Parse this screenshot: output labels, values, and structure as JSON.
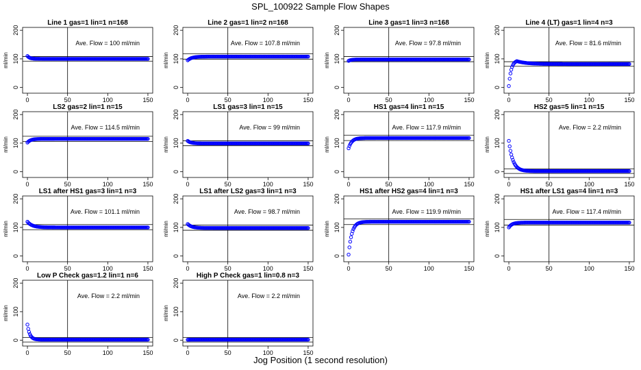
{
  "figure": {
    "title": "SPL_100922  Sample Flow Shapes",
    "xlabel": "Jog Position (1 second resolution)"
  },
  "colors": {
    "points": "#0000ff",
    "axes": "#000000",
    "background": "#ffffff"
  },
  "chart_data": [
    {
      "type": "scatter",
      "title": "Line 1 gas=1 lin=1 n=168",
      "ylabel": "ml/min",
      "ave_flow_label": "Ave. Flow =  100  ml/min",
      "ave_flow": 100,
      "xlim": [
        0,
        150
      ],
      "ylim": [
        -20,
        210
      ],
      "xticks": [
        0,
        50,
        100,
        150
      ],
      "yticks": [
        0,
        100,
        200
      ],
      "vline_x": 50,
      "hlines": [
        108,
        92
      ],
      "shape": {
        "start": 110,
        "steady": 100,
        "tau": 3
      }
    },
    {
      "type": "scatter",
      "title": "Line 2 gas=1 lin=2 n=168",
      "ylabel": "ml/min",
      "ave_flow_label": "Ave. Flow =  107.8  ml/min",
      "ave_flow": 107.8,
      "xlim": [
        0,
        150
      ],
      "ylim": [
        -20,
        210
      ],
      "xticks": [
        0,
        50,
        100,
        150
      ],
      "yticks": [
        0,
        100,
        200
      ],
      "vline_x": 50,
      "hlines": [
        118,
        99
      ],
      "shape": {
        "start": 95,
        "steady": 108,
        "tau": 5
      }
    },
    {
      "type": "scatter",
      "title": "Line 3 gas=1 lin=3 n=168",
      "ylabel": "ml/min",
      "ave_flow_label": "Ave. Flow =  97.8  ml/min",
      "ave_flow": 97.8,
      "xlim": [
        0,
        150
      ],
      "ylim": [
        -20,
        210
      ],
      "xticks": [
        0,
        50,
        100,
        150
      ],
      "yticks": [
        0,
        100,
        200
      ],
      "vline_x": 50,
      "hlines": [
        108,
        90
      ],
      "shape": {
        "start": 93,
        "steady": 98,
        "tau": 3
      }
    },
    {
      "type": "scatter",
      "title": "Line 4 (LT) gas=1 lin=4 n=3",
      "ylabel": "ml/min",
      "ave_flow_label": "Ave. Flow =  81.6  ml/min",
      "ave_flow": 81.6,
      "xlim": [
        0,
        150
      ],
      "ylim": [
        -20,
        210
      ],
      "xticks": [
        0,
        50,
        100,
        150
      ],
      "yticks": [
        0,
        100,
        200
      ],
      "vline_x": 50,
      "hlines": [
        90,
        74
      ],
      "shape": {
        "start": 5,
        "peak": 92,
        "peak_x": 10,
        "steady": 82
      }
    },
    {
      "type": "scatter",
      "title": "LS2 gas=2 lin=1 n=15",
      "ylabel": "ml/min",
      "ave_flow_label": "Ave. Flow =  114.5  ml/min",
      "ave_flow": 114.5,
      "xlim": [
        0,
        150
      ],
      "ylim": [
        -20,
        210
      ],
      "xticks": [
        0,
        50,
        100,
        150
      ],
      "yticks": [
        0,
        100,
        200
      ],
      "vline_x": 50,
      "hlines": [
        124,
        106
      ],
      "shape": {
        "start": 102,
        "steady": 115,
        "tau": 4
      }
    },
    {
      "type": "scatter",
      "title": "LS1 gas=3 lin=1 n=15",
      "ylabel": "ml/min",
      "ave_flow_label": "Ave. Flow =  99  ml/min",
      "ave_flow": 99,
      "xlim": [
        0,
        150
      ],
      "ylim": [
        -20,
        210
      ],
      "xticks": [
        0,
        50,
        100,
        150
      ],
      "yticks": [
        0,
        100,
        200
      ],
      "vline_x": 50,
      "hlines": [
        108,
        91
      ],
      "shape": {
        "start": 108,
        "steady": 99,
        "tau": 4
      }
    },
    {
      "type": "scatter",
      "title": "HS1 gas=4 lin=1 n=15",
      "ylabel": "ml/min",
      "ave_flow_label": "Ave. Flow =  117.9  ml/min",
      "ave_flow": 117.9,
      "xlim": [
        0,
        150
      ],
      "ylim": [
        -20,
        210
      ],
      "xticks": [
        0,
        50,
        100,
        150
      ],
      "yticks": [
        0,
        100,
        200
      ],
      "vline_x": 50,
      "hlines": [
        128,
        109
      ],
      "shape": {
        "start": 82,
        "steady": 118,
        "tau": 4
      }
    },
    {
      "type": "scatter",
      "title": "HS2 gas=5 lin=1 n=15",
      "ylabel": "ml/min",
      "ave_flow_label": "Ave. Flow =  2.2  ml/min",
      "ave_flow": 2.2,
      "xlim": [
        0,
        150
      ],
      "ylim": [
        -20,
        210
      ],
      "xticks": [
        0,
        50,
        100,
        150
      ],
      "yticks": [
        0,
        100,
        200
      ],
      "vline_x": 50,
      "hlines": [
        10,
        -6
      ],
      "shape": {
        "start": 108,
        "steady": 2.2,
        "tau": 5
      }
    },
    {
      "type": "scatter",
      "title": "LS1 after HS1 gas=3 lin=1 n=3",
      "ylabel": "ml/min",
      "ave_flow_label": "Ave. Flow =  101.1  ml/min",
      "ave_flow": 101.1,
      "xlim": [
        0,
        150
      ],
      "ylim": [
        -20,
        210
      ],
      "xticks": [
        0,
        50,
        100,
        150
      ],
      "yticks": [
        0,
        100,
        200
      ],
      "vline_x": 50,
      "hlines": [
        110,
        92
      ],
      "shape": {
        "start": 120,
        "steady": 100,
        "tau": 6
      }
    },
    {
      "type": "scatter",
      "title": "LS1 after LS2 gas=3 lin=1 n=3",
      "ylabel": "ml/min",
      "ave_flow_label": "Ave. Flow =  98.7  ml/min",
      "ave_flow": 98.7,
      "xlim": [
        0,
        150
      ],
      "ylim": [
        -20,
        210
      ],
      "xticks": [
        0,
        50,
        100,
        150
      ],
      "yticks": [
        0,
        100,
        200
      ],
      "vline_x": 50,
      "hlines": [
        108,
        90
      ],
      "shape": {
        "start": 112,
        "steady": 98,
        "tau": 5
      }
    },
    {
      "type": "scatter",
      "title": "HS1 after HS2 gas=4 lin=1 n=3",
      "ylabel": "ml/min",
      "ave_flow_label": "Ave. Flow =  119.9  ml/min",
      "ave_flow": 119.9,
      "xlim": [
        0,
        150
      ],
      "ylim": [
        -20,
        210
      ],
      "xticks": [
        0,
        50,
        100,
        150
      ],
      "yticks": [
        0,
        100,
        200
      ],
      "vline_x": 50,
      "hlines": [
        130,
        110
      ],
      "shape": {
        "start": 5,
        "steady": 120,
        "tau": 4
      }
    },
    {
      "type": "scatter",
      "title": "HS1 after LS1 gas=4 lin=1 n=3",
      "ylabel": "ml/min",
      "ave_flow_label": "Ave. Flow =  117.4  ml/min",
      "ave_flow": 117.4,
      "xlim": [
        0,
        150
      ],
      "ylim": [
        -20,
        210
      ],
      "xticks": [
        0,
        50,
        100,
        150
      ],
      "yticks": [
        0,
        100,
        200
      ],
      "vline_x": 50,
      "hlines": [
        128,
        108
      ],
      "shape": {
        "start": 100,
        "steady": 117,
        "tau": 4
      }
    },
    {
      "type": "scatter",
      "title": "Low P Check gas=1.2 lin=1 n=6",
      "ylabel": "ml/min",
      "ave_flow_label": "Ave. Flow =  2.2  ml/min",
      "ave_flow": 2.2,
      "xlim": [
        0,
        150
      ],
      "ylim": [
        -20,
        210
      ],
      "xticks": [
        0,
        50,
        100,
        150
      ],
      "yticks": [
        0,
        100,
        200
      ],
      "vline_x": 50,
      "hlines": [
        10,
        -6
      ],
      "shape": {
        "start": 55,
        "steady": 2.2,
        "tau": 3
      }
    },
    {
      "type": "scatter",
      "title": "High P Check gas=1 lin=0.8 n=3",
      "ylabel": "ml/min",
      "ave_flow_label": "Ave. Flow =  2.2  ml/min",
      "ave_flow": 2.2,
      "xlim": [
        0,
        150
      ],
      "ylim": [
        -20,
        210
      ],
      "xticks": [
        0,
        50,
        100,
        150
      ],
      "yticks": [
        0,
        100,
        200
      ],
      "vline_x": 50,
      "hlines": [
        10,
        -6
      ],
      "shape": {
        "start": 2,
        "steady": 2.2,
        "tau": 1
      }
    }
  ]
}
